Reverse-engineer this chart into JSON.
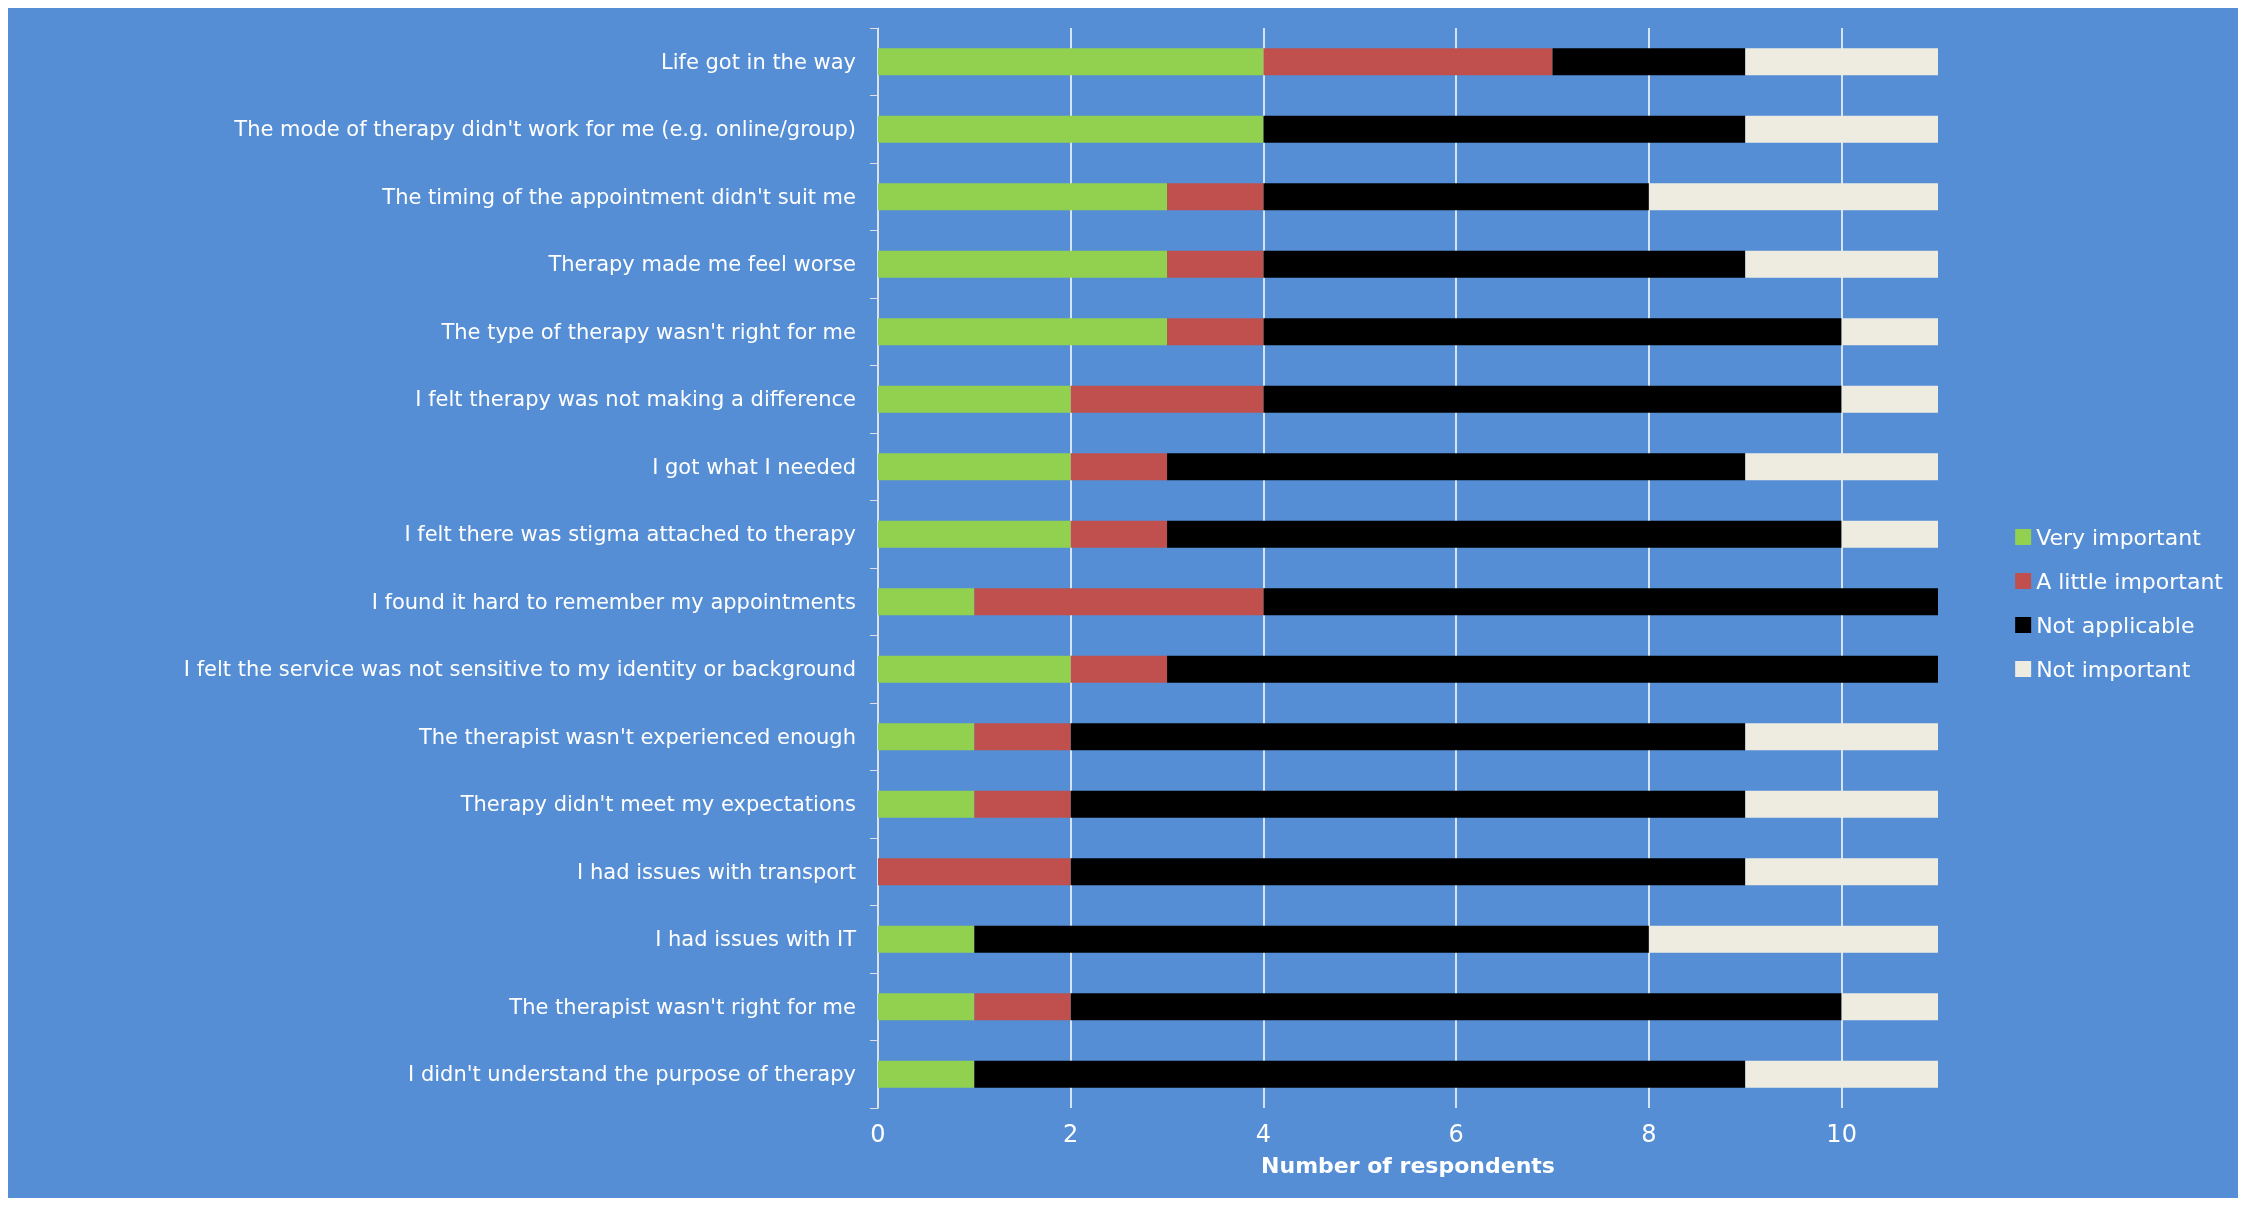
{
  "chart_data": {
    "type": "bar",
    "orientation": "horizontal",
    "stacked": true,
    "xlabel": "Number of respondents",
    "categories": [
      "Life got in the way",
      "The mode of therapy didn't work for me (e.g. online/group)",
      "The timing of the appointment didn't suit me",
      "Therapy made me feel worse",
      "The type of therapy wasn't right for me",
      "I felt therapy was not making a difference",
      "I got what I needed",
      "I felt there was stigma attached to therapy",
      "I found it hard to remember my appointments",
      "I felt the service was not sensitive to my identity or background",
      "The therapist wasn't experienced enough",
      "Therapy didn't meet my expectations",
      "I had issues with transport",
      "I had issues with IT",
      "The therapist wasn't right for me",
      "I didn't understand the purpose of therapy"
    ],
    "series": [
      {
        "name": "Very important",
        "color": "#92d050",
        "values": [
          4,
          4,
          3,
          3,
          3,
          2,
          2,
          2,
          1,
          2,
          1,
          1,
          0,
          1,
          1,
          1
        ]
      },
      {
        "name": "A little important",
        "color": "#c0504d",
        "values": [
          3,
          0,
          1,
          1,
          1,
          2,
          1,
          1,
          3,
          1,
          1,
          1,
          2,
          0,
          1,
          0
        ]
      },
      {
        "name": "Not applicable",
        "color": "#000000",
        "values": [
          2,
          5,
          4,
          5,
          6,
          6,
          6,
          7,
          7,
          8,
          7,
          7,
          7,
          7,
          8,
          8
        ]
      },
      {
        "name": "Not important",
        "color": "#eeece1",
        "values": [
          2,
          2,
          3,
          2,
          1,
          1,
          2,
          1,
          0,
          0,
          2,
          2,
          2,
          3,
          1,
          2
        ]
      }
    ],
    "xlim": [
      0,
      11
    ],
    "xticks": [
      0,
      2,
      4,
      6,
      8,
      10
    ],
    "grid": "x",
    "legend": "right"
  }
}
